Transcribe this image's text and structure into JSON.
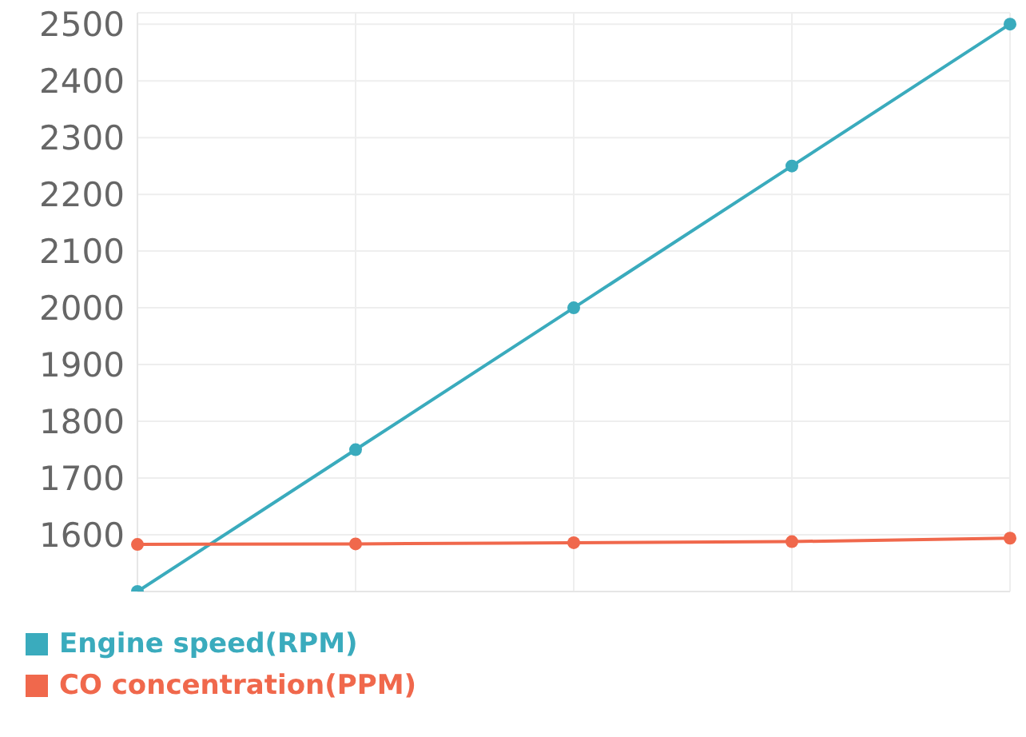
{
  "chart_data": {
    "type": "line",
    "categories": [
      null,
      null,
      null,
      null,
      null
    ],
    "series": [
      {
        "name": "Engine speed(RPM)",
        "color": "#3aabbd",
        "values": [
          1500,
          1750,
          2000,
          2250,
          2500
        ]
      },
      {
        "name": "CO concentration(PPM)",
        "color": "#f0684c",
        "values": [
          1583,
          1584,
          1586,
          1588,
          1594
        ]
      }
    ],
    "ylim": [
      1500,
      2520
    ],
    "yticks": [
      1600,
      1700,
      1800,
      1900,
      2000,
      2100,
      2200,
      2300,
      2400,
      2500
    ],
    "grid": true,
    "legend": "bottom left",
    "marker": "circle",
    "line_style": "solid"
  }
}
